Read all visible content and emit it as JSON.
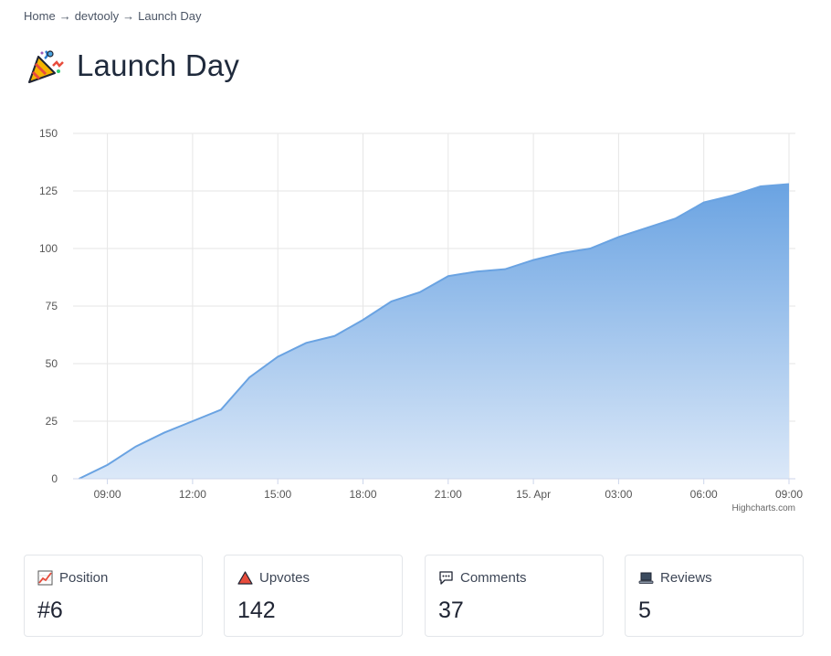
{
  "breadcrumb": {
    "items": [
      "Home",
      "devtooly",
      "Launch Day"
    ],
    "separator": "→"
  },
  "page": {
    "title": "Launch Day",
    "title_icon": "party-popper-icon"
  },
  "chart_data": {
    "type": "area",
    "x": [
      "08:00",
      "09:00",
      "10:00",
      "11:00",
      "12:00",
      "13:00",
      "14:00",
      "15:00",
      "16:00",
      "17:00",
      "18:00",
      "19:00",
      "20:00",
      "21:00",
      "22:00",
      "23:00",
      "00:00",
      "01:00",
      "02:00",
      "03:00",
      "04:00",
      "05:00",
      "06:00",
      "07:00",
      "08:00",
      "09:00"
    ],
    "values": [
      0,
      6,
      14,
      20,
      25,
      30,
      44,
      53,
      59,
      62,
      69,
      77,
      81,
      88,
      90,
      91,
      95,
      98,
      100,
      105,
      109,
      113,
      120,
      123,
      127,
      128
    ],
    "xtick_labels": [
      "09:00",
      "12:00",
      "15:00",
      "18:00",
      "21:00",
      "15. Apr",
      "03:00",
      "06:00",
      "09:00"
    ],
    "yticks": [
      0,
      25,
      50,
      75,
      100,
      125,
      150
    ],
    "ylim": [
      0,
      150
    ],
    "grid": true,
    "credits": "Highcharts.com",
    "colors": {
      "line": "#6aa3e2",
      "fill_top": "#6aa3e2",
      "fill_bottom": "#dbe8f8",
      "grid": "#e6e6e6"
    }
  },
  "stats": [
    {
      "icon": "chart-increasing-icon",
      "label": "Position",
      "value": "#6"
    },
    {
      "icon": "red-triangle-icon",
      "label": "Upvotes",
      "value": "142"
    },
    {
      "icon": "speech-bubble-icon",
      "label": "Comments",
      "value": "37"
    },
    {
      "icon": "laptop-icon",
      "label": "Reviews",
      "value": "5"
    }
  ]
}
